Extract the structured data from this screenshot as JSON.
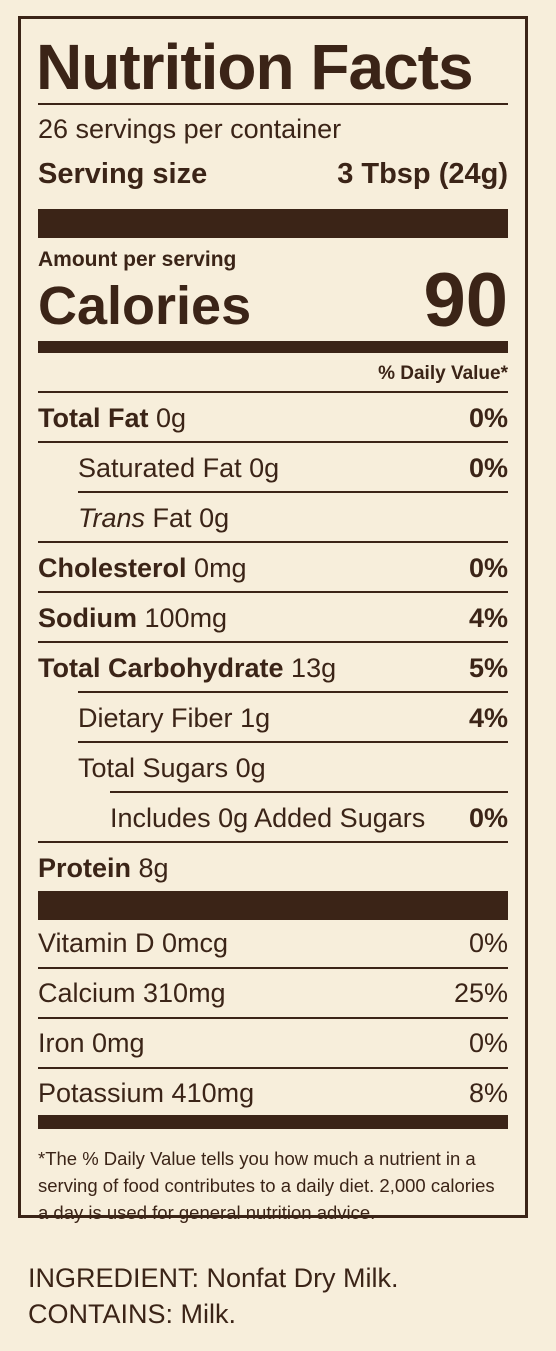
{
  "label": {
    "title": "Nutrition Facts",
    "servings_per_container": "26 servings per container",
    "serving_size_label": "Serving size",
    "serving_size_value": "3 Tbsp (24g)",
    "amount_per_serving": "Amount per serving",
    "calories_label": "Calories",
    "calories_value": "90",
    "daily_value_header": "% Daily Value*",
    "nutrients": [
      {
        "name": "Total Fat",
        "amount": "0g",
        "dv": "0%"
      },
      {
        "name": "Saturated Fat",
        "amount": "0g",
        "dv": "0%"
      },
      {
        "name": "Trans",
        "name_rest": "Fat",
        "amount": "0g",
        "dv": ""
      },
      {
        "name": "Cholesterol",
        "amount": "0mg",
        "dv": "0%"
      },
      {
        "name": "Sodium",
        "amount": "100mg",
        "dv": "4%"
      },
      {
        "name": "Total Carbohydrate",
        "amount": "13g",
        "dv": "5%"
      },
      {
        "name": "Dietary Fiber",
        "amount": "1g",
        "dv": "4%"
      },
      {
        "name": "Total Sugars",
        "amount": "0g",
        "dv": ""
      },
      {
        "name": "Includes 0g Added Sugars",
        "amount": "",
        "dv": "0%"
      },
      {
        "name": "Protein",
        "amount": "8g",
        "dv": ""
      }
    ],
    "vitamins": [
      {
        "text": "Vitamin D 0mcg",
        "dv": "0%"
      },
      {
        "text": "Calcium 310mg",
        "dv": "25%"
      },
      {
        "text": "Iron 0mg",
        "dv": "0%"
      },
      {
        "text": "Potassium 410mg",
        "dv": "8%"
      }
    ],
    "footnote": "*The % Daily Value tells you how much a nutrient in a serving of food contributes to a daily diet. 2,000 calories a day is used for general nutrition advice."
  },
  "ingredients_line": "INGREDIENT: Nonfat Dry Milk.",
  "contains_line": "CONTAINS: Milk.",
  "colors": {
    "background": "#f7eedb",
    "ink": "#3b2417"
  }
}
